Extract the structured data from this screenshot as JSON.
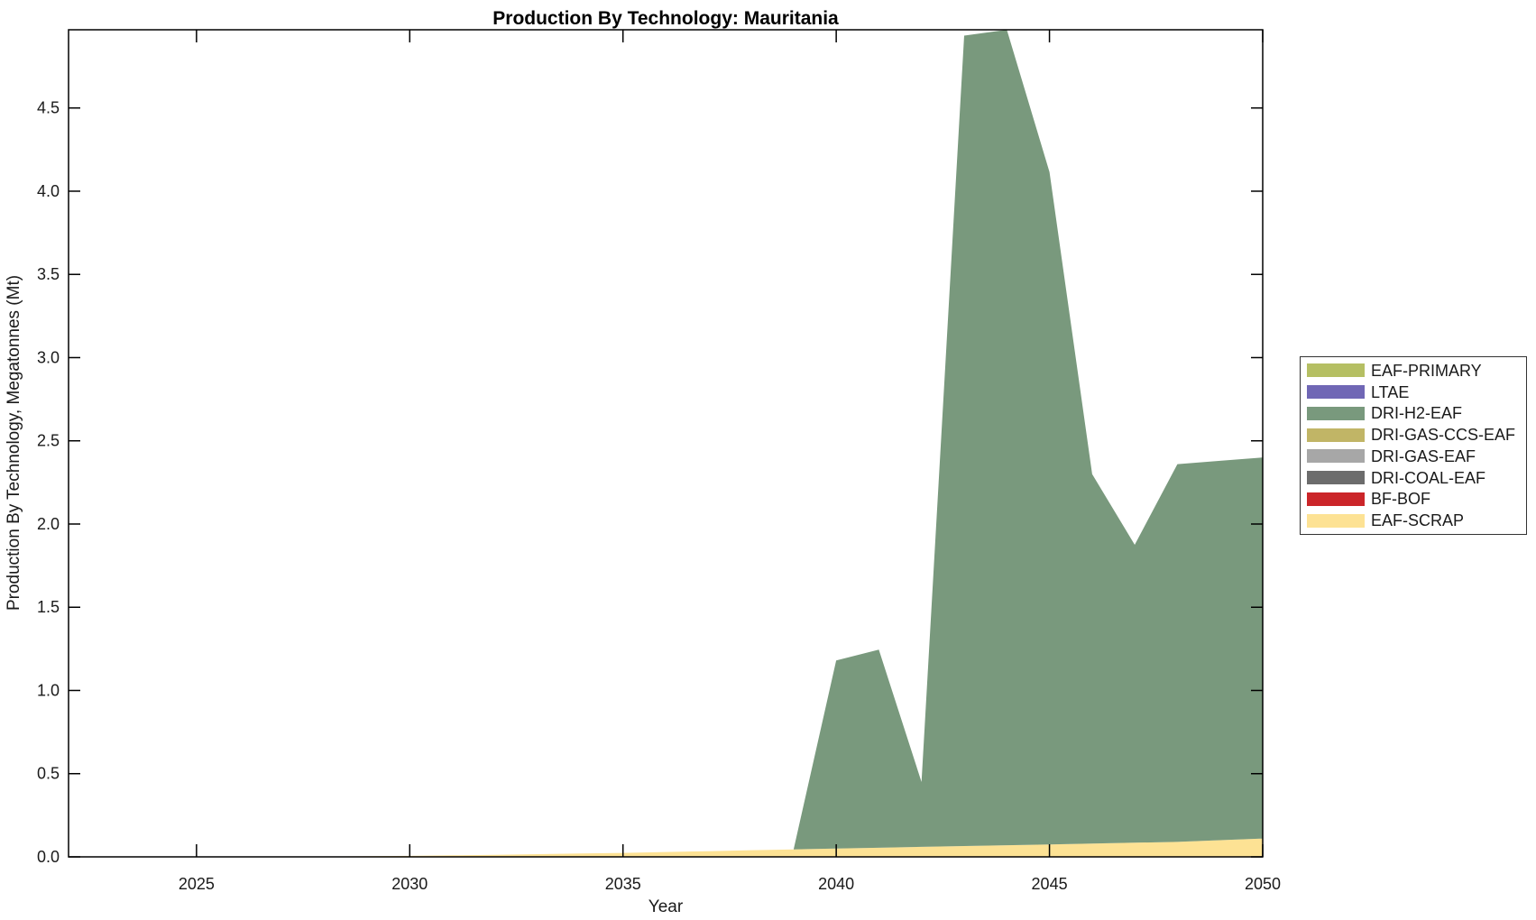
{
  "title": "Production By Technology: Mauritania",
  "axes": {
    "xlabel": "Year",
    "ylabel": "Production By Technology, Megatonnes (Mt)",
    "xticks": [
      2025,
      2030,
      2035,
      2040,
      2045,
      2050
    ],
    "yticks": [
      "0.0",
      "0.5",
      "1.0",
      "1.5",
      "2.0",
      "2.5",
      "3.0",
      "3.5",
      "4.0",
      "4.5"
    ]
  },
  "colors": {
    "background": "#ffffff",
    "axis": "#000000",
    "text": "#1a1a1a"
  },
  "legend": {
    "position": "right-outside",
    "items": [
      {
        "label": "EAF-PRIMARY",
        "color": "#b5bf63"
      },
      {
        "label": "LTAE",
        "color": "#7067b5"
      },
      {
        "label": "DRI-H2-EAF",
        "color": "#79997d"
      },
      {
        "label": "DRI-GAS-CCS-EAF",
        "color": "#c1b566"
      },
      {
        "label": "DRI-GAS-EAF",
        "color": "#a7a7a7"
      },
      {
        "label": "DRI-COAL-EAF",
        "color": "#6c6c6c"
      },
      {
        "label": "BF-BOF",
        "color": "#cb2529"
      },
      {
        "label": "EAF-SCRAP",
        "color": "#fde294"
      }
    ]
  },
  "chart_data": {
    "type": "area",
    "stacked": true,
    "title": "Production By Technology: Mauritania",
    "xlabel": "Year",
    "ylabel": "Production By Technology, Megatonnes (Mt)",
    "xlim": [
      2022,
      2050
    ],
    "ylim": [
      0,
      4.97
    ],
    "grid": false,
    "legend_position": "right-outside",
    "x": [
      2022,
      2023,
      2024,
      2025,
      2026,
      2027,
      2028,
      2029,
      2030,
      2031,
      2032,
      2033,
      2034,
      2035,
      2036,
      2037,
      2038,
      2039,
      2040,
      2041,
      2042,
      2043,
      2044,
      2045,
      2046,
      2047,
      2048,
      2049,
      2050
    ],
    "series": [
      {
        "name": "EAF-SCRAP",
        "color": "#fde294",
        "values": [
          0,
          0,
          0,
          0,
          0,
          0.001,
          0.002,
          0.004,
          0.006,
          0.009,
          0.012,
          0.016,
          0.02,
          0.024,
          0.029,
          0.034,
          0.04,
          0.045,
          0.05,
          0.055,
          0.06,
          0.065,
          0.07,
          0.075,
          0.08,
          0.085,
          0.09,
          0.1,
          0.11
        ]
      },
      {
        "name": "BF-BOF",
        "color": "#cb2529",
        "values": [
          0,
          0,
          0,
          0,
          0,
          0,
          0,
          0,
          0,
          0,
          0,
          0,
          0,
          0,
          0,
          0,
          0,
          0,
          0,
          0,
          0,
          0,
          0,
          0,
          0,
          0,
          0,
          0,
          0
        ]
      },
      {
        "name": "DRI-COAL-EAF",
        "color": "#6c6c6c",
        "values": [
          0,
          0,
          0,
          0,
          0,
          0,
          0,
          0,
          0,
          0,
          0,
          0,
          0,
          0,
          0,
          0,
          0,
          0,
          0,
          0,
          0,
          0,
          0,
          0,
          0,
          0,
          0,
          0,
          0
        ]
      },
      {
        "name": "DRI-GAS-EAF",
        "color": "#a7a7a7",
        "values": [
          0,
          0,
          0,
          0,
          0,
          0,
          0,
          0,
          0,
          0,
          0,
          0,
          0,
          0,
          0,
          0,
          0,
          0,
          0,
          0,
          0,
          0,
          0,
          0,
          0,
          0,
          0,
          0,
          0
        ]
      },
      {
        "name": "DRI-GAS-CCS-EAF",
        "color": "#c1b566",
        "values": [
          0,
          0,
          0,
          0,
          0,
          0,
          0,
          0,
          0,
          0,
          0,
          0,
          0,
          0,
          0,
          0,
          0,
          0,
          0,
          0,
          0,
          0,
          0,
          0,
          0,
          0,
          0,
          0,
          0
        ]
      },
      {
        "name": "DRI-H2-EAF",
        "color": "#79997d",
        "values": [
          0,
          0,
          0,
          0,
          0,
          0,
          0,
          0,
          0,
          0,
          0,
          0,
          0,
          0,
          0,
          0,
          0,
          0,
          1.13,
          1.19,
          0.39,
          4.87,
          4.9,
          4.04,
          2.22,
          1.79,
          2.27,
          2.28,
          2.29
        ]
      },
      {
        "name": "LTAE",
        "color": "#7067b5",
        "values": [
          0,
          0,
          0,
          0,
          0,
          0,
          0,
          0,
          0,
          0,
          0,
          0,
          0,
          0,
          0,
          0,
          0,
          0,
          0,
          0,
          0,
          0,
          0,
          0,
          0,
          0,
          0,
          0,
          0
        ]
      },
      {
        "name": "EAF-PRIMARY",
        "color": "#b5bf63",
        "values": [
          0,
          0,
          0,
          0,
          0,
          0,
          0,
          0,
          0,
          0,
          0,
          0,
          0,
          0,
          0,
          0,
          0,
          0,
          0,
          0,
          0,
          0,
          0,
          0,
          0,
          0,
          0,
          0,
          0
        ]
      }
    ]
  }
}
